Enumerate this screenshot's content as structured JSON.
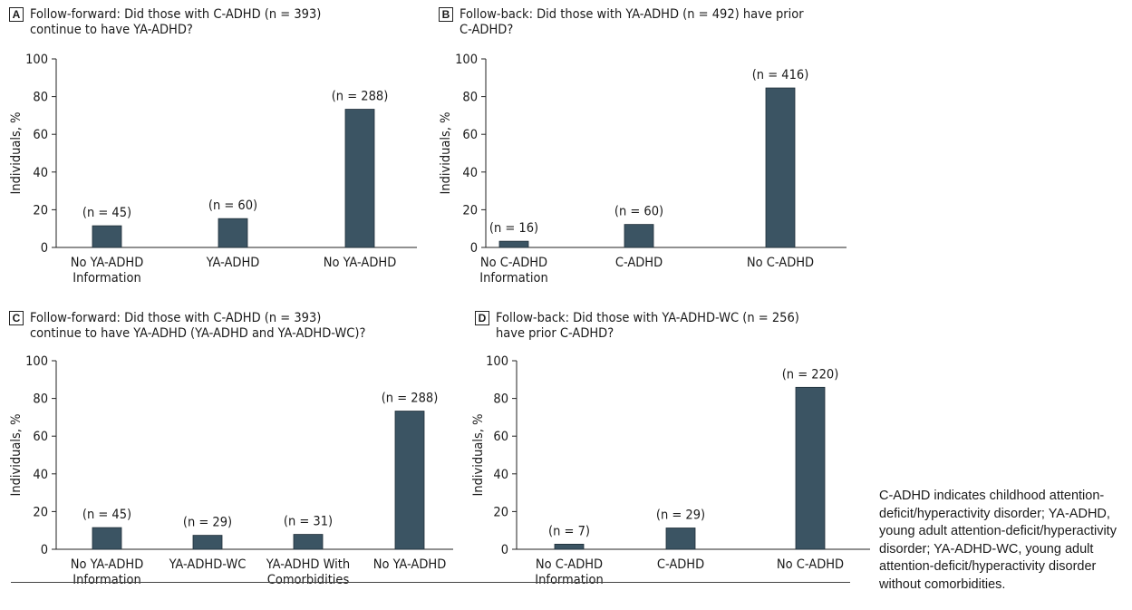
{
  "chart_data": [
    {
      "type": "bar",
      "panel_letter": "A",
      "title_lines": [
        "Follow-forward: Did those with C-ADHD (n = 393)",
        "continue to have YA-ADHD?"
      ],
      "ylabel": "Individuals, %",
      "ylim": [
        0,
        100
      ],
      "yticks": [
        0,
        20,
        40,
        60,
        80,
        100
      ],
      "categories": [
        [
          "No YA-ADHD",
          "Information"
        ],
        [
          "YA-ADHD"
        ],
        [
          "No YA-ADHD"
        ]
      ],
      "values": [
        11.5,
        15.3,
        73.3
      ],
      "labels": [
        "(n = 45)",
        "(n = 60)",
        "(n = 288)"
      ],
      "bar_color": "#3b5463"
    },
    {
      "type": "bar",
      "panel_letter": "B",
      "title_lines": [
        "Follow-back: Did those with YA-ADHD (n = 492) have prior",
        "C-ADHD?"
      ],
      "ylabel": "Individuals, %",
      "ylim": [
        0,
        100
      ],
      "yticks": [
        0,
        20,
        40,
        60,
        80,
        100
      ],
      "categories": [
        [
          "No C-ADHD",
          "Information"
        ],
        [
          "C-ADHD"
        ],
        [
          "No C-ADHD"
        ]
      ],
      "values": [
        3.3,
        12.2,
        84.6
      ],
      "labels": [
        "(n = 16)",
        "(n = 60)",
        "(n = 416)"
      ],
      "bar_color": "#3b5463"
    },
    {
      "type": "bar",
      "panel_letter": "C",
      "title_lines": [
        "Follow-forward: Did those with C-ADHD (n = 393)",
        "continue to have YA-ADHD (YA-ADHD and YA-ADHD-WC)?"
      ],
      "ylabel": "Individuals, %",
      "ylim": [
        0,
        100
      ],
      "yticks": [
        0,
        20,
        40,
        60,
        80,
        100
      ],
      "categories": [
        [
          "No YA-ADHD",
          "Information"
        ],
        [
          "YA-ADHD-WC"
        ],
        [
          "YA-ADHD With",
          "Comorbidities"
        ],
        [
          "No YA-ADHD"
        ]
      ],
      "values": [
        11.5,
        7.4,
        7.9,
        73.3
      ],
      "labels": [
        "(n = 45)",
        "(n = 29)",
        "(n = 31)",
        "(n = 288)"
      ],
      "bar_color": "#3b5463"
    },
    {
      "type": "bar",
      "panel_letter": "D",
      "title_lines": [
        "Follow-back: Did those with YA-ADHD-WC (n = 256)",
        "have prior C-ADHD?"
      ],
      "ylabel": "Individuals, %",
      "ylim": [
        0,
        100
      ],
      "yticks": [
        0,
        20,
        40,
        60,
        80,
        100
      ],
      "categories": [
        [
          "No C-ADHD",
          "Information"
        ],
        [
          "C-ADHD"
        ],
        [
          "No C-ADHD"
        ]
      ],
      "values": [
        2.7,
        11.3,
        85.9
      ],
      "labels": [
        "(n = 7)",
        "(n = 29)",
        "(n = 220)"
      ],
      "bar_color": "#3b5463"
    }
  ],
  "footnote": "C-ADHD indicates childhood attention-deficit/hyperactivity disorder; YA-ADHD, young adult attention-deficit/hyperactivity disorder; YA-ADHD-WC, young adult attention-deficit/hyperactivity disorder without comorbidities."
}
